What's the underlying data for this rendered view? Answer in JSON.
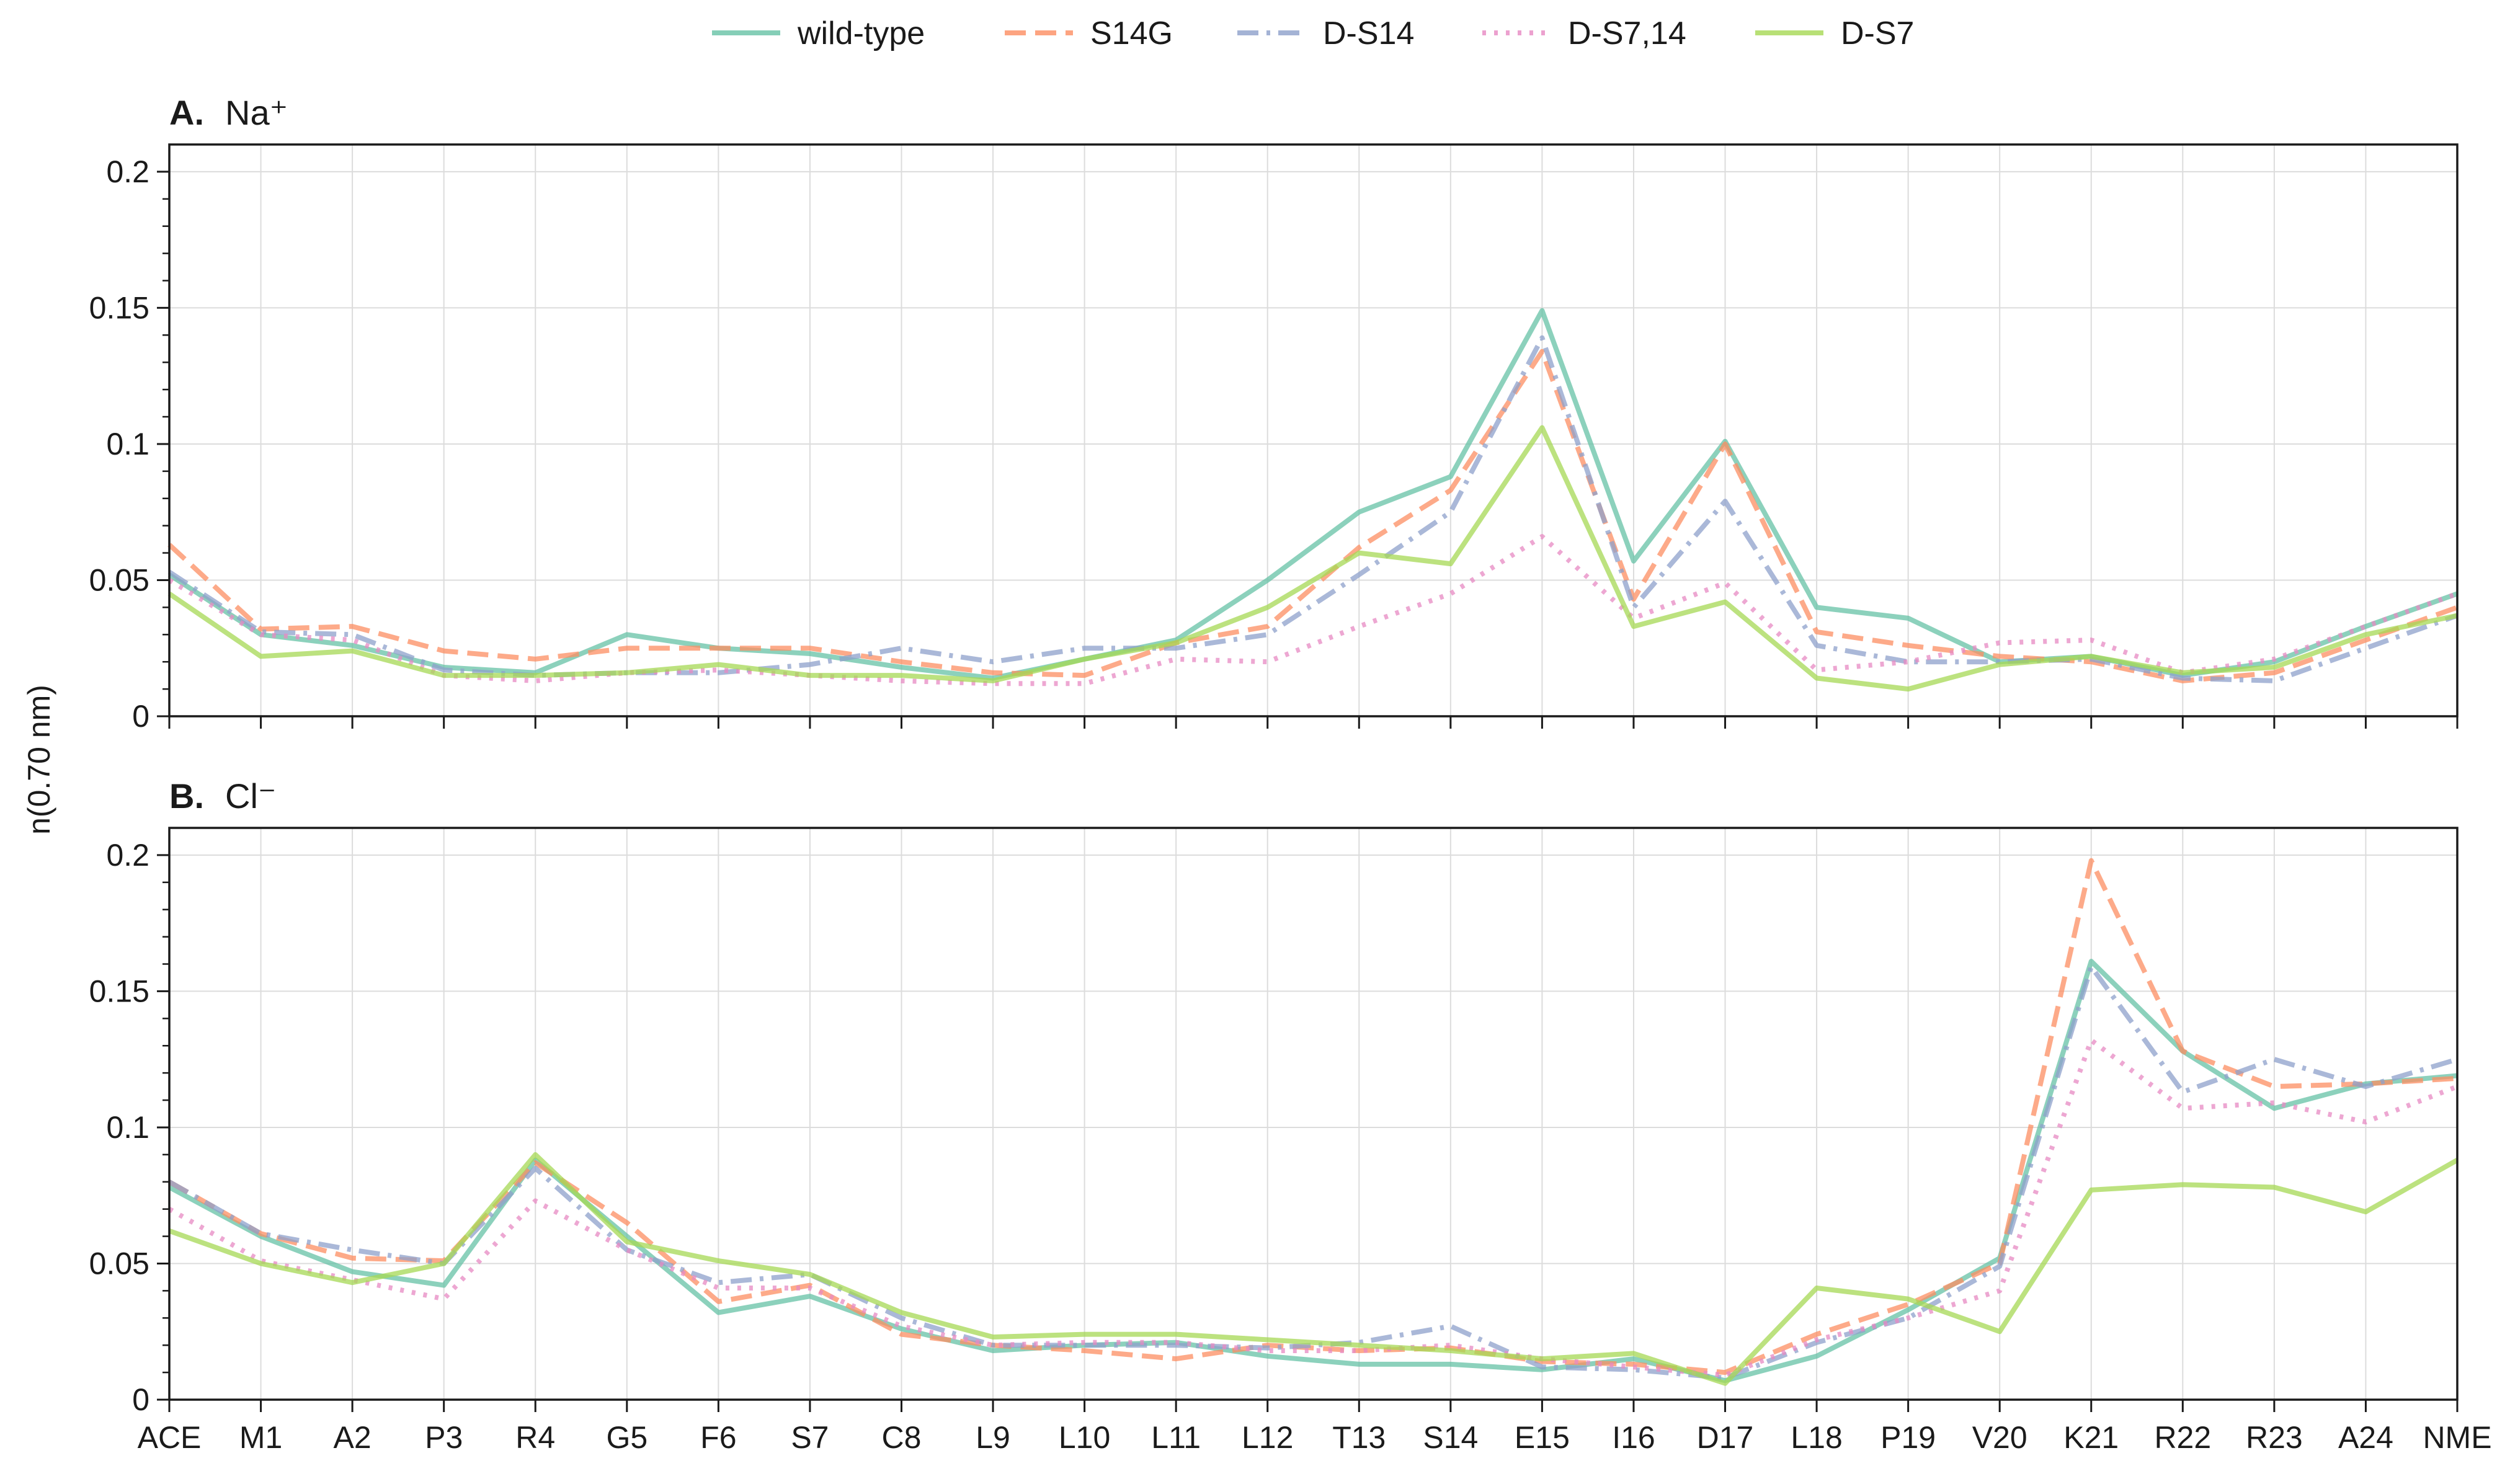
{
  "chart_data": {
    "type": "line",
    "ylabel": "n(0.70 nm)",
    "legend_position": "top-center",
    "grid": true,
    "categories": [
      "ACE",
      "M1",
      "A2",
      "P3",
      "R4",
      "G5",
      "F6",
      "S7",
      "C8",
      "L9",
      "L10",
      "L11",
      "L12",
      "T13",
      "S14",
      "E15",
      "I16",
      "D17",
      "L18",
      "P19",
      "V20",
      "K21",
      "R22",
      "R23",
      "A24",
      "NME"
    ],
    "series_styles": [
      {
        "name": "wild-type",
        "color": "#66c2a5",
        "dash": "solid"
      },
      {
        "name": "S14G",
        "color": "#fc8d62",
        "dash": "dashed"
      },
      {
        "name": "D-S14",
        "color": "#8da0cb",
        "dash": "dashdot"
      },
      {
        "name": "D-S7,14",
        "color": "#e78ac3",
        "dash": "dotted"
      },
      {
        "name": "D-S7",
        "color": "#a6d854",
        "dash": "solid"
      }
    ],
    "panels": [
      {
        "letter": "A.",
        "title": "Na⁺",
        "ylim": [
          0,
          0.21
        ],
        "yticks": [
          0,
          0.05,
          0.1,
          0.15,
          0.2
        ],
        "ytick_labels": [
          "0",
          "0.05",
          "0.1",
          "0.15",
          "0.2"
        ],
        "series": [
          {
            "name": "wild-type",
            "values": [
              0.052,
              0.03,
              0.026,
              0.018,
              0.016,
              0.03,
              0.025,
              0.023,
              0.018,
              0.014,
              0.021,
              0.028,
              0.05,
              0.075,
              0.088,
              0.149,
              0.057,
              0.101,
              0.04,
              0.036,
              0.02,
              0.022,
              0.015,
              0.02,
              0.033,
              0.045
            ]
          },
          {
            "name": "S14G",
            "values": [
              0.063,
              0.032,
              0.033,
              0.024,
              0.021,
              0.025,
              0.025,
              0.025,
              0.02,
              0.016,
              0.015,
              0.027,
              0.033,
              0.062,
              0.083,
              0.134,
              0.043,
              0.1,
              0.031,
              0.026,
              0.022,
              0.02,
              0.013,
              0.016,
              0.028,
              0.04
            ]
          },
          {
            "name": "D-S14",
            "values": [
              0.053,
              0.031,
              0.03,
              0.017,
              0.015,
              0.016,
              0.016,
              0.019,
              0.025,
              0.02,
              0.025,
              0.025,
              0.03,
              0.052,
              0.075,
              0.139,
              0.04,
              0.079,
              0.026,
              0.02,
              0.02,
              0.021,
              0.014,
              0.013,
              0.025,
              0.037
            ]
          },
          {
            "name": "D-S7,14",
            "values": [
              0.05,
              0.03,
              0.028,
              0.015,
              0.013,
              0.016,
              0.017,
              0.015,
              0.013,
              0.012,
              0.012,
              0.021,
              0.02,
              0.033,
              0.045,
              0.066,
              0.036,
              0.049,
              0.017,
              0.02,
              0.027,
              0.028,
              0.016,
              0.021,
              0.033,
              0.045
            ]
          },
          {
            "name": "D-S7",
            "values": [
              0.045,
              0.022,
              0.024,
              0.015,
              0.015,
              0.016,
              0.019,
              0.015,
              0.015,
              0.013,
              0.021,
              0.027,
              0.04,
              0.06,
              0.056,
              0.106,
              0.033,
              0.042,
              0.014,
              0.01,
              0.019,
              0.022,
              0.016,
              0.018,
              0.03,
              0.037
            ]
          }
        ]
      },
      {
        "letter": "B.",
        "title": "Cl⁻",
        "ylim": [
          0,
          0.21
        ],
        "yticks": [
          0,
          0.05,
          0.1,
          0.15,
          0.2
        ],
        "ytick_labels": [
          "0",
          "0.05",
          "0.1",
          "0.15",
          "0.2"
        ],
        "series": [
          {
            "name": "wild-type",
            "values": [
              0.078,
              0.06,
              0.047,
              0.042,
              0.088,
              0.06,
              0.032,
              0.038,
              0.026,
              0.018,
              0.02,
              0.021,
              0.016,
              0.013,
              0.013,
              0.011,
              0.015,
              0.007,
              0.016,
              0.033,
              0.052,
              0.161,
              0.128,
              0.107,
              0.116,
              0.119
            ]
          },
          {
            "name": "S14G",
            "values": [
              0.08,
              0.061,
              0.052,
              0.051,
              0.087,
              0.065,
              0.036,
              0.042,
              0.024,
              0.02,
              0.018,
              0.015,
              0.02,
              0.018,
              0.019,
              0.014,
              0.013,
              0.01,
              0.024,
              0.035,
              0.05,
              0.198,
              0.128,
              0.115,
              0.116,
              0.118
            ]
          },
          {
            "name": "D-S14",
            "values": [
              0.08,
              0.061,
              0.055,
              0.05,
              0.085,
              0.055,
              0.043,
              0.046,
              0.03,
              0.02,
              0.02,
              0.02,
              0.019,
              0.021,
              0.027,
              0.012,
              0.011,
              0.008,
              0.021,
              0.03,
              0.049,
              0.159,
              0.113,
              0.125,
              0.115,
              0.125
            ]
          },
          {
            "name": "D-S7,14",
            "values": [
              0.07,
              0.051,
              0.044,
              0.037,
              0.073,
              0.055,
              0.041,
              0.041,
              0.027,
              0.02,
              0.021,
              0.021,
              0.018,
              0.018,
              0.02,
              0.015,
              0.012,
              0.009,
              0.022,
              0.03,
              0.04,
              0.132,
              0.107,
              0.109,
              0.102,
              0.115
            ]
          },
          {
            "name": "D-S7",
            "values": [
              0.062,
              0.05,
              0.043,
              0.05,
              0.09,
              0.058,
              0.051,
              0.046,
              0.032,
              0.023,
              0.024,
              0.024,
              0.022,
              0.02,
              0.018,
              0.015,
              0.017,
              0.006,
              0.041,
              0.037,
              0.025,
              0.077,
              0.079,
              0.078,
              0.069,
              0.088
            ]
          }
        ]
      }
    ]
  }
}
